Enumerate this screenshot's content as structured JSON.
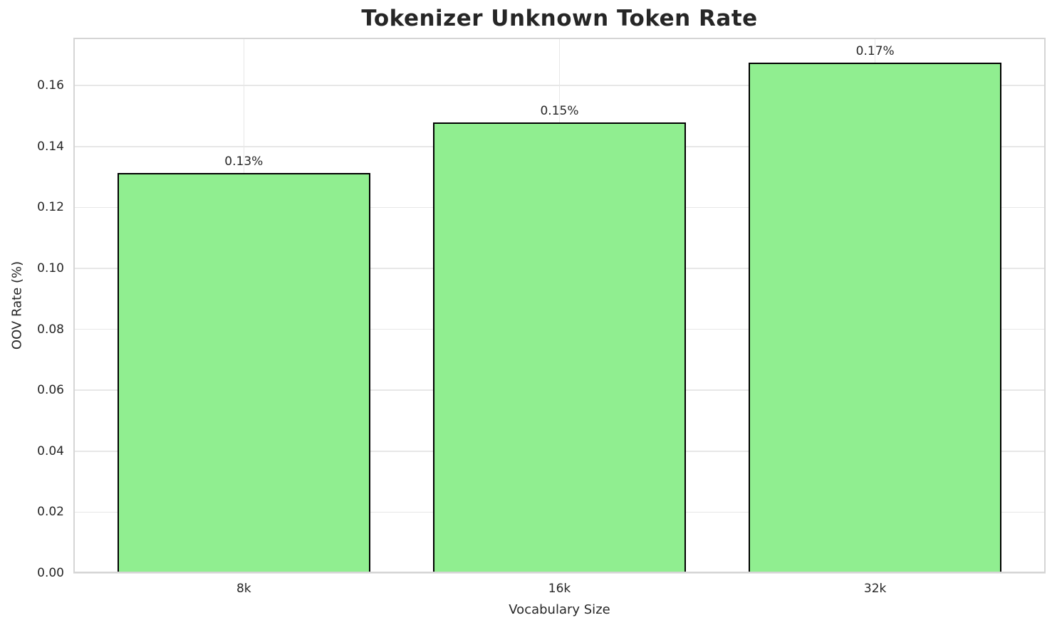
{
  "chart_data": {
    "type": "bar",
    "title": "Tokenizer Unknown Token Rate",
    "xlabel": "Vocabulary Size",
    "ylabel": "OOV Rate (%)",
    "categories": [
      "8k",
      "16k",
      "32k"
    ],
    "values": [
      0.1314,
      0.1479,
      0.1675
    ],
    "bar_labels": [
      "0.13%",
      "0.15%",
      "0.17%"
    ],
    "ytick_values": [
      0.0,
      0.02,
      0.04,
      0.06,
      0.08,
      0.1,
      0.12,
      0.14,
      0.16
    ],
    "ytick_labels": [
      "0.00",
      "0.02",
      "0.04",
      "0.06",
      "0.08",
      "0.10",
      "0.12",
      "0.14",
      "0.16"
    ],
    "ylim": [
      0,
      0.1757
    ],
    "xlim": [
      -0.54,
      2.54
    ],
    "bar_width": 0.8,
    "grid": true,
    "legend": false,
    "colors": {
      "bar_fill": "#90ee90",
      "bar_edge": "#000000",
      "grid_line": "#e7e7e7",
      "spine": "#d5d5d5",
      "text": "#262626",
      "background": "#ffffff"
    }
  }
}
